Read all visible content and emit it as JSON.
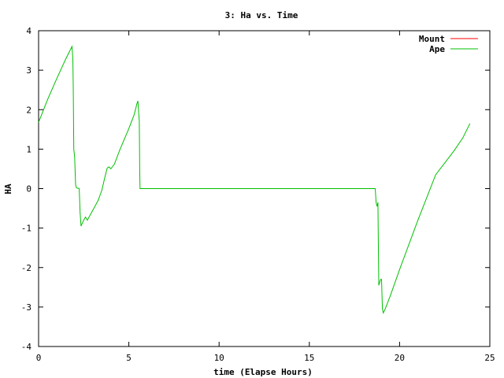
{
  "chart_data": {
    "type": "line",
    "title": "3: Ha vs. Time",
    "xlabel": "time (Elapse Hours)",
    "ylabel": "HA",
    "xlim": [
      0,
      25
    ],
    "ylim": [
      -4,
      4
    ],
    "x_ticks": [
      0,
      5,
      10,
      15,
      20,
      25
    ],
    "y_ticks": [
      -4,
      -3,
      -2,
      -1,
      0,
      1,
      2,
      3,
      4
    ],
    "grid": false,
    "legend_position": "top-right",
    "series": [
      {
        "name": "Mount",
        "color": "#ff0000",
        "points": []
      },
      {
        "name": "Ape",
        "color": "#00c000",
        "points": [
          [
            0.0,
            1.68
          ],
          [
            0.5,
            2.26
          ],
          [
            1.0,
            2.78
          ],
          [
            1.5,
            3.28
          ],
          [
            1.85,
            3.6
          ],
          [
            1.9,
            3.3
          ],
          [
            1.92,
            2.6
          ],
          [
            1.95,
            1.0
          ],
          [
            2.0,
            0.8
          ],
          [
            2.05,
            0.1
          ],
          [
            2.1,
            0.02
          ],
          [
            2.15,
            0.01
          ],
          [
            2.2,
            0.01
          ],
          [
            2.25,
            0.0
          ],
          [
            2.3,
            -0.6
          ],
          [
            2.35,
            -0.95
          ],
          [
            2.5,
            -0.8
          ],
          [
            2.6,
            -0.72
          ],
          [
            2.7,
            -0.8
          ],
          [
            3.0,
            -0.55
          ],
          [
            3.3,
            -0.3
          ],
          [
            3.5,
            -0.05
          ],
          [
            3.65,
            0.25
          ],
          [
            3.8,
            0.52
          ],
          [
            3.9,
            0.55
          ],
          [
            4.0,
            0.5
          ],
          [
            4.2,
            0.62
          ],
          [
            4.5,
            0.98
          ],
          [
            5.0,
            1.52
          ],
          [
            5.3,
            1.88
          ],
          [
            5.45,
            2.15
          ],
          [
            5.5,
            2.22
          ],
          [
            5.55,
            1.9
          ],
          [
            5.58,
            1.7
          ],
          [
            5.6,
            0.5
          ],
          [
            5.62,
            0.0
          ],
          [
            6.0,
            0.0
          ],
          [
            10.0,
            0.0
          ],
          [
            15.0,
            0.0
          ],
          [
            18.65,
            0.0
          ],
          [
            18.7,
            -0.35
          ],
          [
            18.75,
            -0.45
          ],
          [
            18.8,
            -0.35
          ],
          [
            18.85,
            -2.45
          ],
          [
            18.95,
            -2.3
          ],
          [
            19.0,
            -2.3
          ],
          [
            19.05,
            -3.05
          ],
          [
            19.1,
            -3.15
          ],
          [
            19.2,
            -3.05
          ],
          [
            19.5,
            -2.7
          ],
          [
            20.0,
            -2.05
          ],
          [
            21.0,
            -0.82
          ],
          [
            22.0,
            0.35
          ],
          [
            23.0,
            0.95
          ],
          [
            23.5,
            1.28
          ],
          [
            23.9,
            1.65
          ]
        ]
      }
    ]
  }
}
